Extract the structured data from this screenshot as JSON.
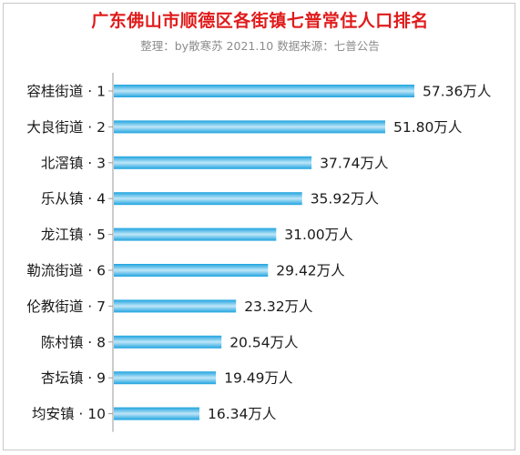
{
  "title": "广东佛山市顺德区各街镇七普常住人口排名",
  "subtitle": "整理：by散寒苏  2021.10  数据来源：七普公告",
  "colors": {
    "title": "#e01b1b",
    "bar_dark": "#1ea3df",
    "bar_light": "#bfe6f8",
    "axis": "#9a9a9a"
  },
  "chart_data": {
    "type": "bar",
    "orientation": "horizontal",
    "categories": [
      "容桂街道 · 1",
      "大良街道 · 2",
      "北滘镇 · 3",
      "乐从镇 · 4",
      "龙江镇 · 5",
      "勒流街道 · 6",
      "伦教街道 · 7",
      "陈村镇 · 8",
      "杏坛镇 · 9",
      "均安镇 · 10"
    ],
    "values": [
      57.36,
      51.8,
      37.74,
      35.92,
      31.0,
      29.42,
      23.32,
      20.54,
      19.49,
      16.34
    ],
    "value_labels": [
      "57.36万人",
      "51.80万人",
      "37.74万人",
      "35.92万人",
      "31.00万人",
      "29.42万人",
      "23.32万人",
      "20.54万人",
      "19.49万人",
      "16.34万人"
    ],
    "unit": "万人",
    "xlim": [
      0,
      57.36
    ],
    "grid": false,
    "legend": "none"
  }
}
